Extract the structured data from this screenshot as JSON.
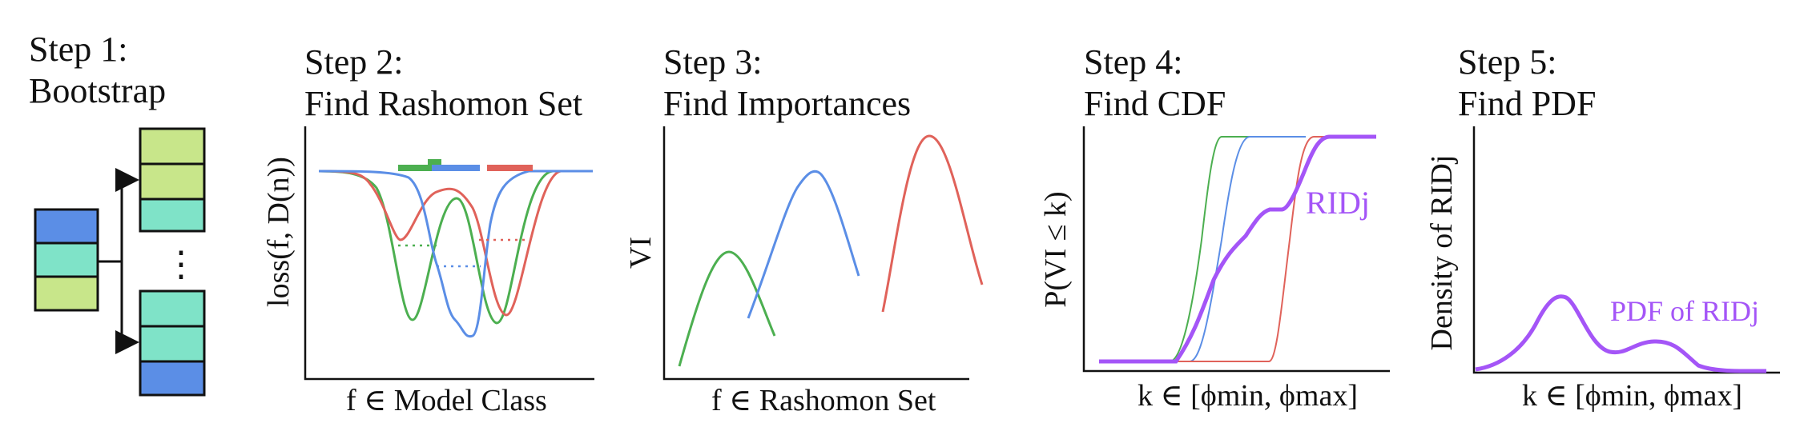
{
  "steps": [
    {
      "label": "Step 1:",
      "title": "Bootstrap"
    },
    {
      "label": "Step 2:",
      "title": "Find Rashomon Set"
    },
    {
      "label": "Step 3:",
      "title": "Find Importances"
    },
    {
      "label": "Step 4:",
      "title": "Find CDF"
    },
    {
      "label": "Step 5:",
      "title": "Find PDF"
    }
  ],
  "step1": {
    "ellipsis": "⋮"
  },
  "step2": {
    "ylabel": "loss(f, D(n))",
    "xlabel": "f ∈ Model  Class"
  },
  "step3": {
    "ylabel": "VI",
    "xlabel": "f ∈ Rashomon  Set"
  },
  "step4": {
    "ylabel": "P(VI ≤ k)",
    "xlabel": "k ∈ [ϕmin, ϕmax]",
    "curve_label": "RIDj"
  },
  "step5": {
    "ylabel": "Density of RIDj",
    "xlabel": "k ∈ [ϕmin, ϕmax]",
    "curve_label": "PDF of RIDj"
  },
  "colors": {
    "green": "#4caf50",
    "blue": "#5b8ee6",
    "red": "#e0625a",
    "purple": "#a455f7",
    "light_green": "#c8e68a",
    "teal": "#7fe3c8",
    "block_blue": "#5b8ee6"
  }
}
